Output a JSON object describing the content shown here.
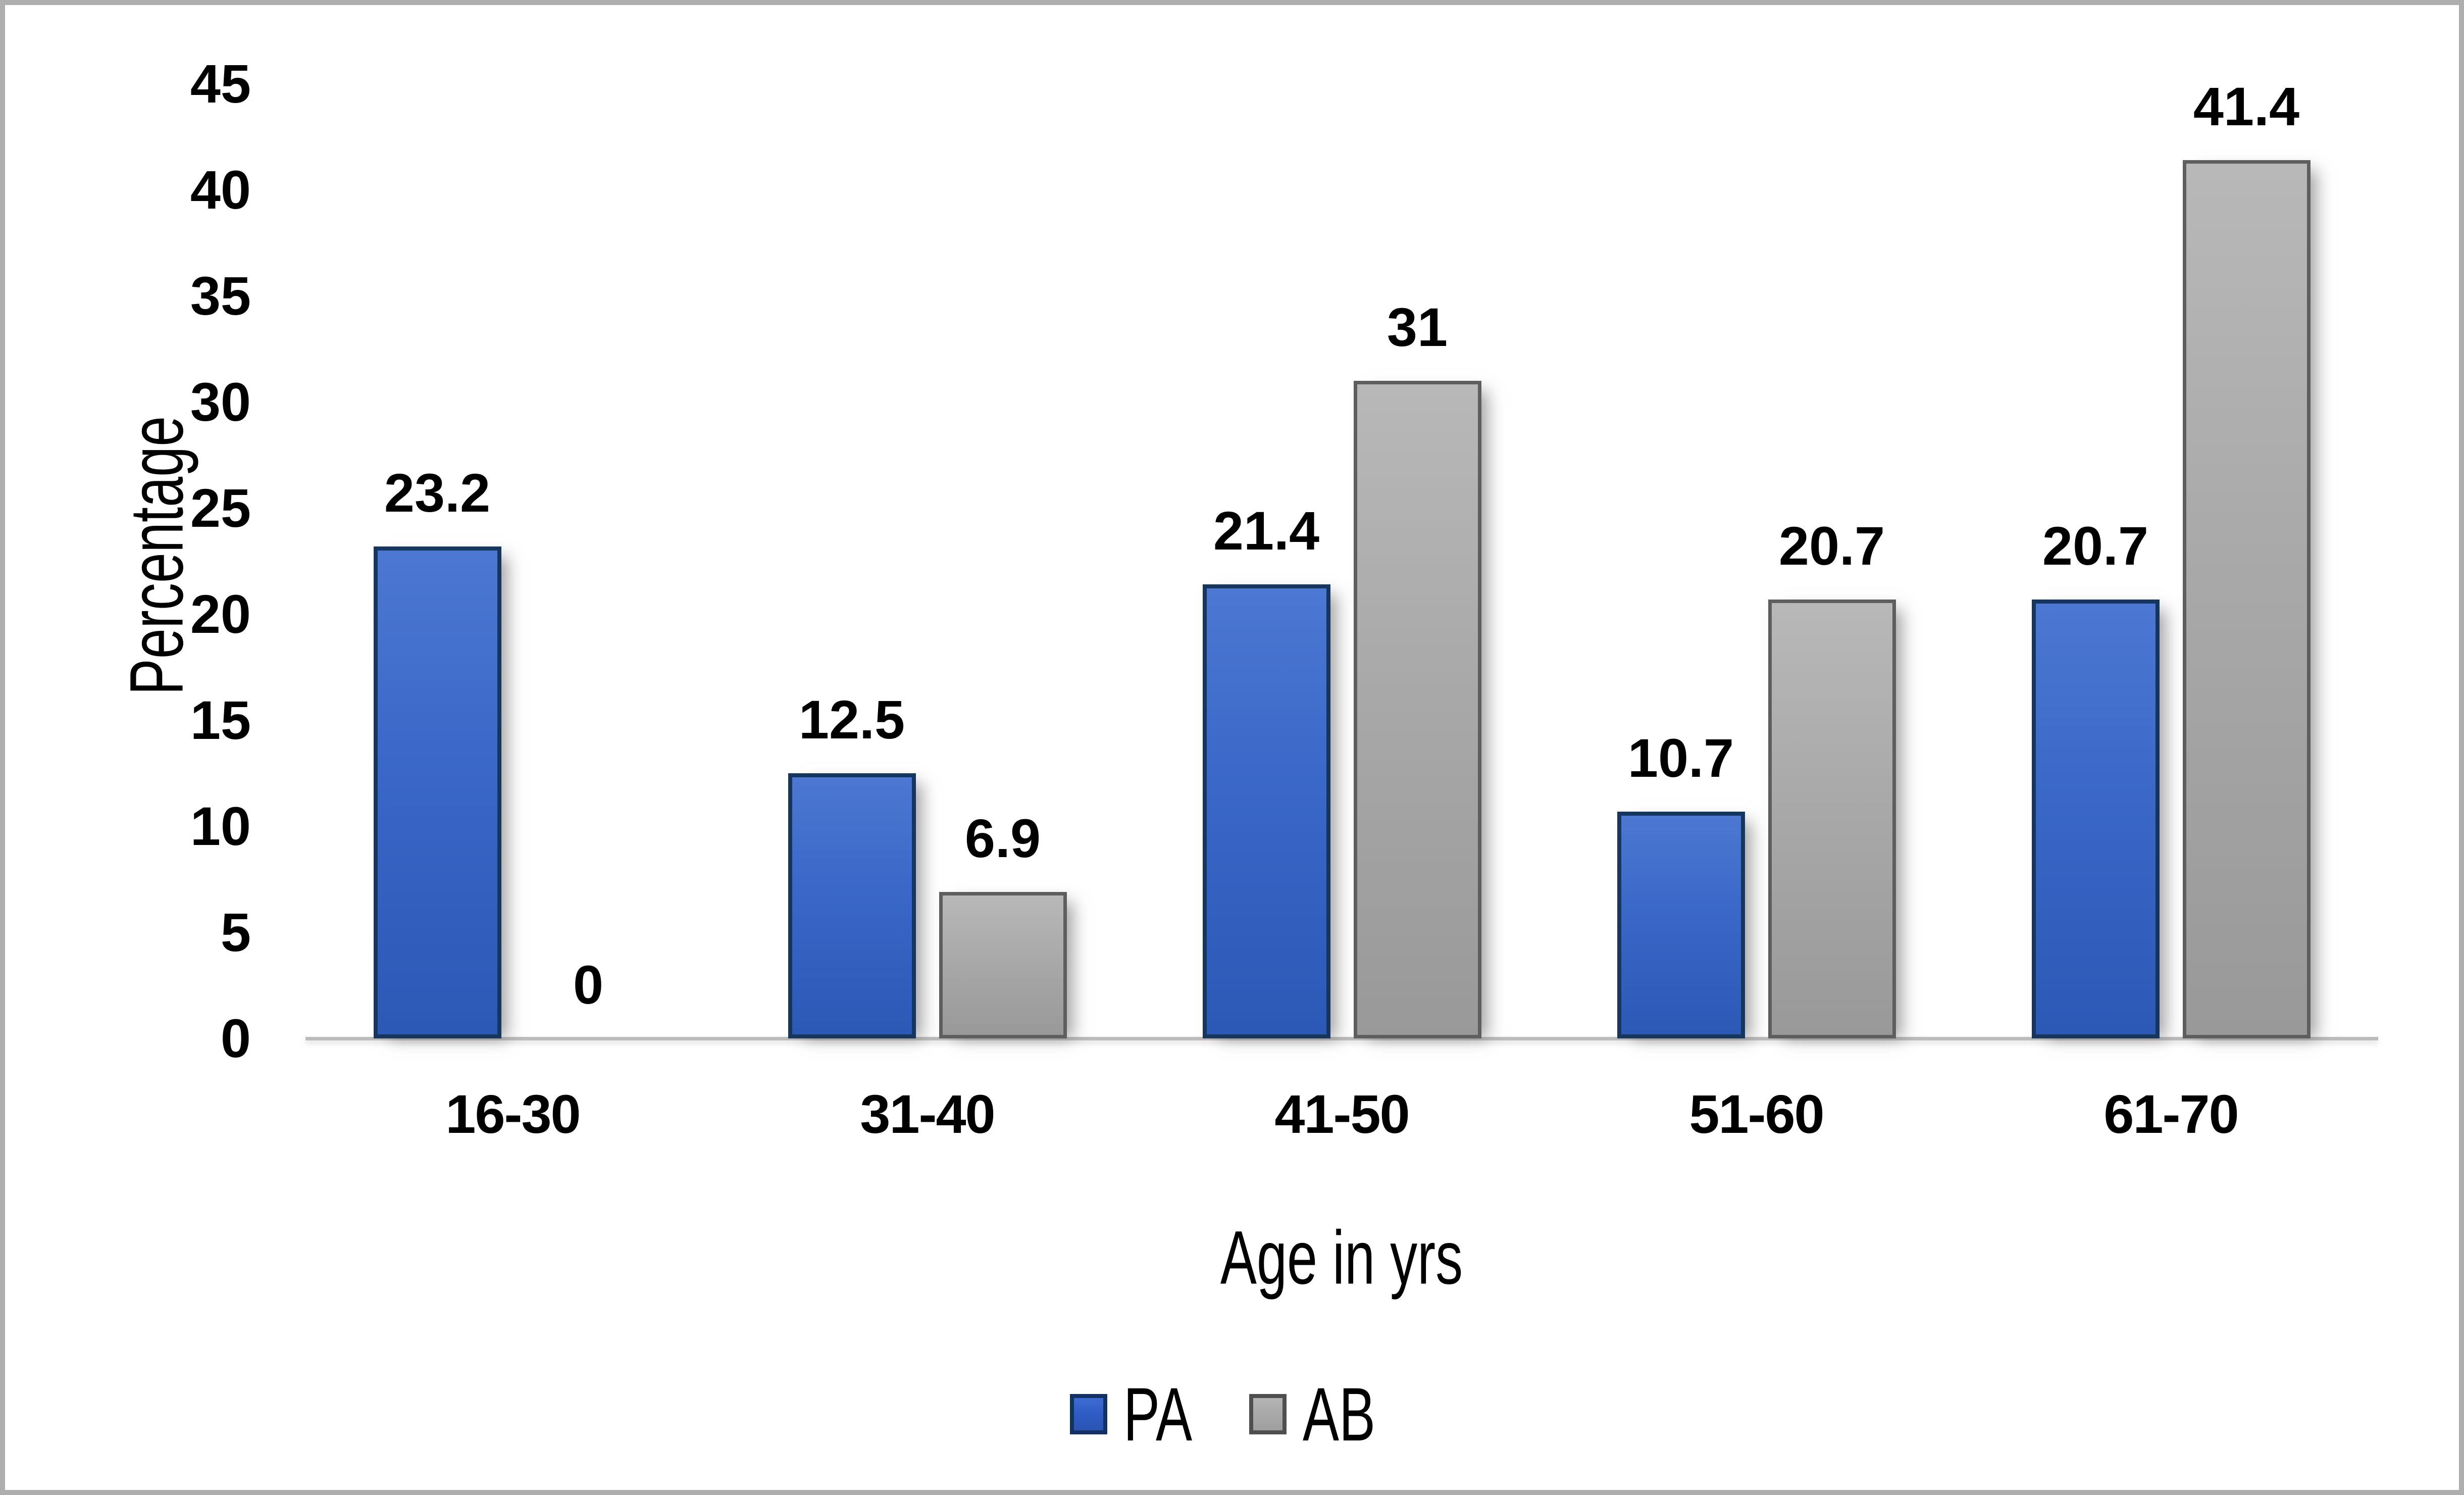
{
  "chart_data": {
    "type": "bar",
    "title": "",
    "xlabel": "Age in yrs",
    "ylabel": "Percentage",
    "categories": [
      "16-30",
      "31-40",
      "41-50",
      "51-60",
      "61-70"
    ],
    "series": [
      {
        "name": "PA",
        "key": "pa",
        "values": [
          23.2,
          12.5,
          21.4,
          10.7,
          20.7
        ],
        "labels": [
          "23.2",
          "12.5",
          "21.4",
          "10.7",
          "20.7"
        ]
      },
      {
        "name": "AB",
        "key": "ab",
        "values": [
          0,
          6.9,
          31,
          20.7,
          41.4
        ],
        "labels": [
          "0",
          "6.9",
          "31",
          "20.7",
          "41.4"
        ]
      }
    ],
    "ylim": [
      0,
      45
    ],
    "y_tick_step": 5,
    "y_ticks": [
      "0",
      "5",
      "10",
      "15",
      "20",
      "25",
      "30",
      "35",
      "40",
      "45"
    ],
    "grid": false,
    "legend_position": "bottom-center"
  },
  "colors": {
    "pa_fill": "#3a67c8",
    "pa_border": "#17365d",
    "ab_fill": "#a9a9a9",
    "ab_border": "#5e5e5e",
    "axis_line": "#bcbcbc",
    "frame_border": "#aeaeae",
    "text": "#000000",
    "background": "#ffffff"
  }
}
